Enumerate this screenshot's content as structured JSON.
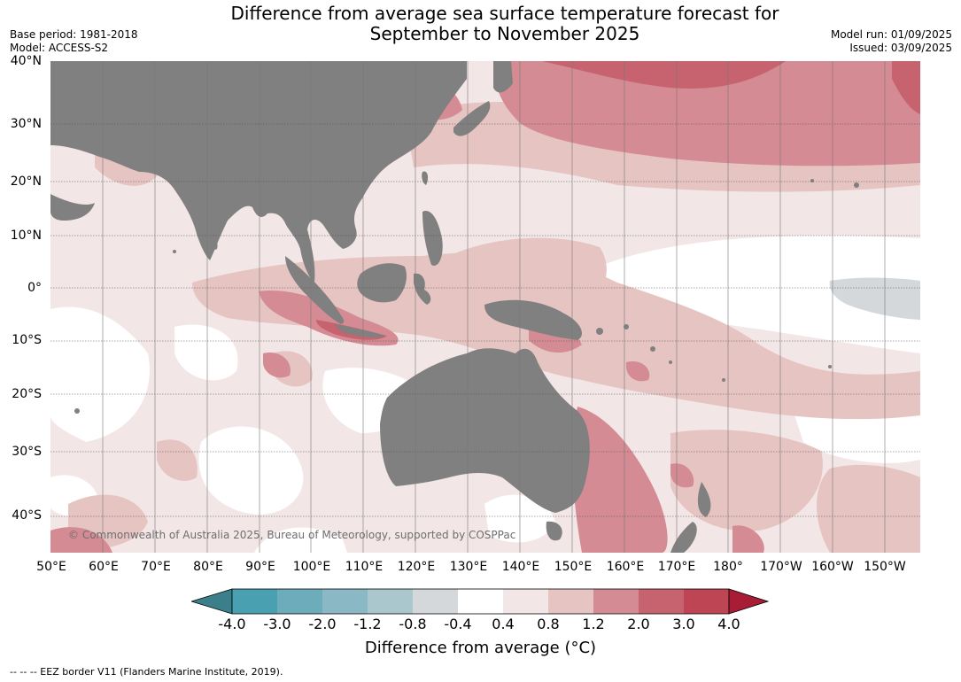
{
  "header": {
    "title_line1": "Difference from average sea surface temperature forecast for",
    "title_line2": "September to November 2025",
    "base_period": "Base period: 1981-2018",
    "model": "Model: ACCESS-S2",
    "model_run": "Model run: 01/09/2025",
    "issued": "Issued: 03/09/2025"
  },
  "map": {
    "lat_labels": [
      "40°N",
      "30°N",
      "20°N",
      "10°N",
      "0°",
      "10°S",
      "20°S",
      "30°S",
      "40°S"
    ],
    "lon_labels": [
      "50°E",
      "60°E",
      "70°E",
      "80°E",
      "90°E",
      "100°E",
      "110°E",
      "120°E",
      "130°E",
      "140°E",
      "150°E",
      "160°E",
      "170°E",
      "180°",
      "170°W",
      "160°W",
      "150°W"
    ],
    "copyright": "© Commonwealth of Australia 2025, Bureau of Meteorology, supported by COSPPac",
    "land_color": "#808080",
    "palette": {
      "above_0_4": "#f3e6e6",
      "above_0_8": "#e6c4c2",
      "above_1_2": "#d58b93",
      "above_2_0": "#c7636e",
      "below_0_4": "#d4d8da",
      "neutral": "#ffffff"
    }
  },
  "colorbar": {
    "tick_labels": [
      "-4.0",
      "-3.0",
      "-2.0",
      "-1.2",
      "-0.8",
      "-0.4",
      "0.4",
      "0.8",
      "1.2",
      "2.0",
      "3.0",
      "4.0"
    ],
    "colors": [
      "#3b7f8b",
      "#48a0b1",
      "#6dacba",
      "#8ab9c5",
      "#a9c7cc",
      "#d4d8da",
      "#ffffff",
      "#f3e6e6",
      "#e6c4c2",
      "#d58b93",
      "#c7636e",
      "#be4553",
      "#a81d35"
    ],
    "title": "Difference from average (°C)"
  },
  "footer": {
    "eez_note": "--  --  -- EEZ border V11 (Flanders Marine Institute, 2019)."
  }
}
